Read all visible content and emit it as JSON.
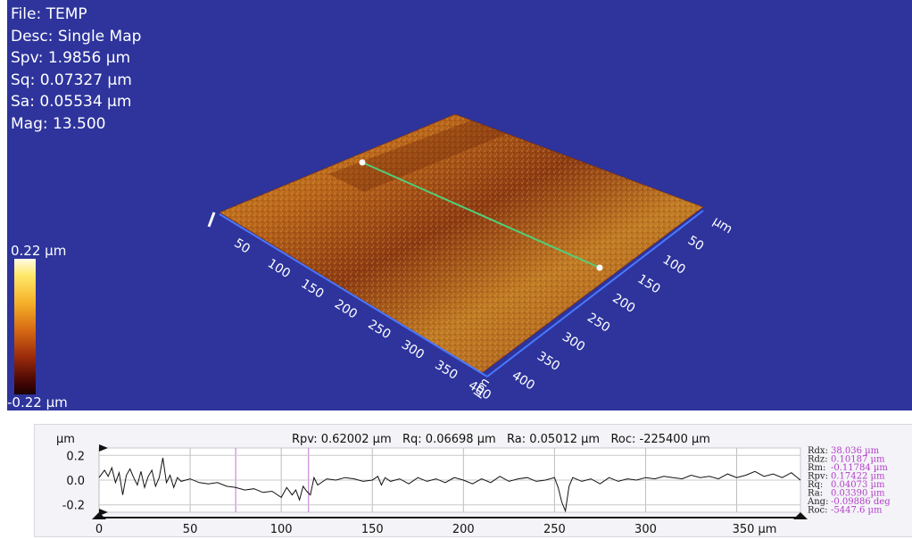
{
  "info": {
    "file": "File: TEMP",
    "desc": "Desc: Single Map",
    "spv": "Spv: 1.9856 µm",
    "sq": "Sq: 0.07327 µm",
    "sa": "Sa: 0.05534 µm",
    "mag": "Mag: 13.500"
  },
  "colorbar": {
    "max_label": "0.22 µm",
    "min_label": "-0.22 µm"
  },
  "surface_view": {
    "background": "#2e349c",
    "left_axis_ticks": [
      "50",
      "100",
      "150",
      "200",
      "250",
      "300",
      "350",
      "400"
    ],
    "left_axis_unit": "µm",
    "right_axis_ticks": [
      "µm",
      "50",
      "100",
      "150",
      "200",
      "250",
      "300",
      "350",
      "400"
    ]
  },
  "profile": {
    "header": "Rpv: 0.62002 µm   Rq: 0.06698 µm   Ra: 0.05012 µm   Roc: -225400 µm",
    "y_unit": "µm",
    "y_ticks": [
      "0.2",
      "0.0",
      "-0.2"
    ],
    "x_ticks": [
      "0",
      "50",
      "100",
      "150",
      "200",
      "250",
      "300",
      "350 µm"
    ],
    "params": [
      {
        "name": "Rdx:",
        "value": "38.036 µm"
      },
      {
        "name": "Rdz:",
        "value": "0.10187 µm"
      },
      {
        "name": "Rm:",
        "value": "-0.11784 µm"
      },
      {
        "name": "Rpv:",
        "value": "0.17422 µm"
      },
      {
        "name": "Rq:",
        "value": "0.04073 µm"
      },
      {
        "name": "Ra:",
        "value": "0.03390 µm"
      },
      {
        "name": "Ang:",
        "value": "-0.09886 deg"
      },
      {
        "name": "Roc:",
        "value": "-5447.6 µm"
      }
    ],
    "param_value_color": "#b23cc8"
  },
  "chart_data": {
    "type": "line",
    "title": "Rpv: 0.62002 µm   Rq: 0.06698 µm   Ra: 0.05012 µm   Roc: -225400 µm",
    "xlabel": "",
    "ylabel": "µm",
    "xlim": [
      0,
      385
    ],
    "ylim": [
      -0.26,
      0.26
    ],
    "x_ticks": [
      0,
      50,
      100,
      150,
      200,
      250,
      300,
      350
    ],
    "y_ticks": [
      0.2,
      0.0,
      -0.2
    ],
    "series": [
      {
        "x": [
          0,
          3,
          5,
          7,
          9,
          11,
          13,
          15,
          17,
          19,
          21,
          23,
          25,
          27,
          29,
          31,
          33,
          35,
          37,
          39,
          41,
          43,
          45,
          50,
          55,
          60,
          65,
          70,
          75,
          80,
          85,
          90,
          95,
          100,
          103,
          106,
          108,
          110,
          112,
          114,
          116,
          118,
          120,
          125,
          130,
          135,
          140,
          145,
          150,
          153,
          155,
          157,
          160,
          165,
          170,
          175,
          180,
          185,
          190,
          195,
          200,
          205,
          210,
          215,
          220,
          225,
          230,
          235,
          240,
          245,
          250,
          252,
          254,
          256,
          258,
          260,
          265,
          270,
          275,
          280,
          285,
          290,
          295,
          300,
          305,
          310,
          315,
          320,
          325,
          330,
          335,
          340,
          345,
          350,
          355,
          360,
          365,
          370,
          375,
          380,
          385
        ],
        "y": [
          0.02,
          0.08,
          0.03,
          0.1,
          -0.02,
          0.06,
          -0.12,
          0.04,
          0.09,
          0.02,
          -0.04,
          0.07,
          -0.06,
          0.03,
          0.08,
          -0.05,
          0.02,
          0.18,
          -0.02,
          0.04,
          -0.06,
          0.02,
          -0.01,
          0.01,
          -0.02,
          -0.03,
          -0.02,
          -0.05,
          -0.06,
          -0.08,
          -0.07,
          -0.1,
          -0.09,
          -0.14,
          -0.06,
          -0.12,
          -0.08,
          -0.16,
          -0.05,
          -0.09,
          -0.12,
          0.02,
          -0.04,
          0.01,
          0.0,
          0.02,
          0.01,
          -0.01,
          0.0,
          0.03,
          -0.04,
          0.02,
          -0.01,
          0.01,
          -0.03,
          0.02,
          -0.01,
          0.01,
          -0.02,
          0.02,
          0.0,
          -0.03,
          0.01,
          -0.02,
          0.03,
          -0.01,
          0.01,
          0.02,
          -0.01,
          0.0,
          0.02,
          -0.06,
          -0.18,
          -0.25,
          -0.05,
          0.02,
          -0.01,
          0.01,
          -0.03,
          0.02,
          -0.01,
          0.01,
          0.0,
          0.02,
          0.01,
          0.03,
          0.02,
          0.01,
          0.04,
          0.02,
          0.03,
          0.01,
          0.05,
          0.02,
          0.04,
          0.07,
          0.03,
          0.05,
          0.02,
          0.06,
          0.0
        ]
      }
    ],
    "grid": true
  }
}
